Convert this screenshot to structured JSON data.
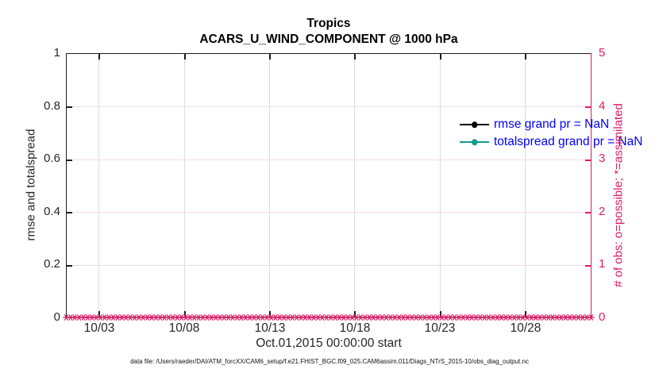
{
  "title": {
    "line1": "Tropics",
    "line2": "ACARS_U_WIND_COMPONENT @ 1000 hPa"
  },
  "axes": {
    "left": {
      "label": "rmse and totalspread",
      "tick_labels": [
        "1",
        "0.8",
        "0.6",
        "0.4",
        "0.2",
        "0"
      ]
    },
    "right": {
      "label": "# of obs: o=possible; *=assimilated",
      "tick_labels": [
        "5",
        "4",
        "3",
        "2",
        "1",
        "0"
      ],
      "color": "#de1b64"
    },
    "x": {
      "label": "Oct.01,2015 00:00:00 start",
      "tick_labels": [
        "10/03",
        "10/08",
        "10/13",
        "10/18",
        "10/23",
        "10/28"
      ]
    }
  },
  "legend": [
    {
      "label": "rmse grand pr = NaN",
      "color": "#000000"
    },
    {
      "label": "totalspread grand pr = NaN",
      "color": "#149792"
    }
  ],
  "caption": "data file: /Users/raeder/DAI/ATM_forcXX/CAM6_setup/f.e21.FHIST_BGC.f09_025.CAM6assim.011/Diags_NTrS_2015-10/obs_diag_output.nc",
  "chart_data": {
    "type": "line",
    "title": "Tropics",
    "subtitle": "ACARS_U_WIND_COMPONENT @ 1000 hPa",
    "x_axis": {
      "label": "Oct.01,2015 00:00:00 start",
      "tick_labels": [
        "10/03",
        "10/08",
        "10/13",
        "10/18",
        "10/23",
        "10/28"
      ],
      "range": [
        "2015-10-01 00:00",
        "2015-11-01 00:00"
      ]
    },
    "left_y_axis": {
      "label": "rmse and totalspread",
      "ylim": [
        0,
        1
      ],
      "ticks": [
        0,
        0.2,
        0.4,
        0.6,
        0.8,
        1
      ]
    },
    "right_y_axis": {
      "label": "# of obs: o=possible; *=assimilated",
      "ylim": [
        0,
        5
      ],
      "ticks": [
        0,
        1,
        2,
        3,
        4,
        5
      ],
      "color": "#de1b64"
    },
    "grid": {
      "vertical_color": "#dcdcdc",
      "horizontal_color": "#f6d8e4",
      "grid_on": true
    },
    "legend_position": "top-right inside, no box",
    "series": [
      {
        "name": "rmse",
        "legend": "rmse grand pr = NaN",
        "color": "#000000",
        "axis": "left",
        "values": "NaN - no curve plotted"
      },
      {
        "name": "totalspread",
        "legend": "totalspread grand pr = NaN",
        "color": "#149792",
        "axis": "left",
        "values": "NaN - no curve plotted"
      },
      {
        "name": "assimilated observation count",
        "marker": "*",
        "color": "#de1b64",
        "axis": "right",
        "value_constant": 0,
        "marker_count": 124,
        "note": "dense band of * markers at y=0 spanning the full date range"
      }
    ]
  }
}
